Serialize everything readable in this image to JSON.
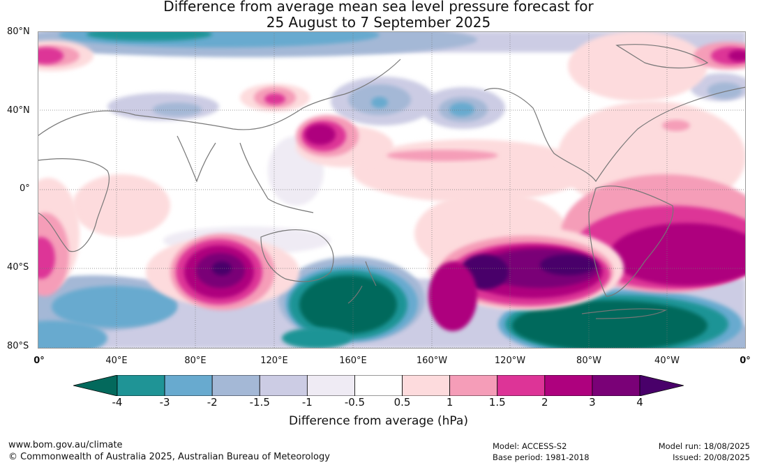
{
  "title_line1": "Difference from average mean sea level pressure forecast for",
  "title_line2": "25 August to 7 September 2025",
  "lat_labels": [
    "80°N",
    "40°N",
    "0°",
    "40°S",
    "80°S"
  ],
  "lon_labels": [
    "0°",
    "40°E",
    "80°E",
    "120°E",
    "160°E",
    "160°W",
    "120°W",
    "80°W",
    "40°W",
    "0°"
  ],
  "colorbar": {
    "title": "Difference from average (hPa)",
    "tick_labels": [
      "-4",
      "-3",
      "-2",
      "-1.5",
      "-1",
      "-0.5",
      "0.5",
      "1",
      "1.5",
      "2",
      "3",
      "4"
    ],
    "colors": [
      "#03695c",
      "#1f9496",
      "#68aacf",
      "#a4b8d6",
      "#cccce4",
      "#efebf4",
      "#ffffff",
      "#fddbdd",
      "#f59db8",
      "#dd3497",
      "#ae017e",
      "#7a0177",
      "#49006a"
    ]
  },
  "footer": {
    "website": "www.bom.gov.au/climate",
    "copyright": "© Commonwealth of Australia 2025, Australian Bureau of Meteorology",
    "model": "Model: ACCESS-S2",
    "base_period": "Base period: 1981-2018",
    "model_run": "Model run: 18/08/2025",
    "issued": "Issued: 20/08/2025"
  }
}
